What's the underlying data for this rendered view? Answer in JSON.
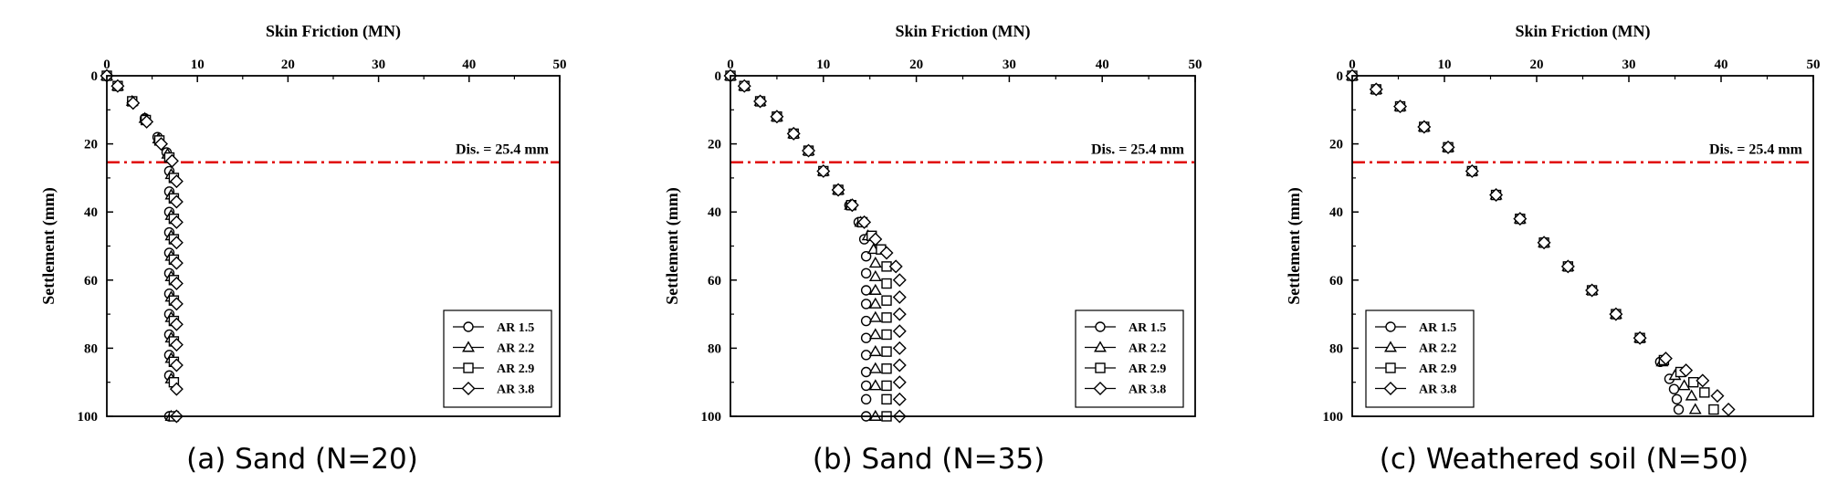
{
  "chart_data": [
    {
      "type": "scatter",
      "panel_label": "(a) Sand (N=20)",
      "title": "Skin Friction (MN)",
      "xlabel": "Skin Friction (MN)",
      "ylabel": "Settlement (mm)",
      "xlim": [
        0,
        50
      ],
      "ylim": [
        0,
        100
      ],
      "y_inverted": true,
      "xticks": [
        "0",
        "10",
        "20",
        "30",
        "40",
        "50"
      ],
      "yticks": [
        "0",
        "20",
        "40",
        "60",
        "80",
        "100"
      ],
      "reference_line": {
        "y": 25.4,
        "label": "Dis. = 25.4 mm",
        "color": "#e00000",
        "style": "dash-dot"
      },
      "legend": [
        "AR 1.5",
        "AR 2.2",
        "AR 2.9",
        "AR 3.8"
      ],
      "series": [
        {
          "name": "AR 1.5",
          "marker": "circle",
          "x": [
            0,
            1.2,
            2.8,
            4.2,
            5.6,
            6.6,
            6.9,
            6.9,
            6.9,
            6.9,
            6.9,
            6.9,
            6.9,
            6.9,
            6.9,
            6.9,
            6.9,
            6.9
          ],
          "y": [
            0,
            3,
            7.5,
            12.5,
            18,
            22.5,
            28,
            34,
            40,
            46,
            52,
            58,
            64,
            70,
            76,
            82,
            88,
            100
          ]
        },
        {
          "name": "AR 2.2",
          "marker": "triangle",
          "x": [
            0,
            1.2,
            2.8,
            4.2,
            5.7,
            6.7,
            7.1,
            7.1,
            7.1,
            7.1,
            7.1,
            7.1,
            7.1,
            7.1,
            7.1,
            7.1,
            7.1,
            7.1
          ],
          "y": [
            0,
            3,
            7.5,
            12.5,
            18.5,
            23,
            29,
            35,
            41,
            47,
            53,
            59,
            65,
            71,
            77,
            83,
            89,
            100
          ]
        },
        {
          "name": "AR 2.9",
          "marker": "square",
          "x": [
            0,
            1.2,
            2.8,
            4.3,
            5.8,
            6.9,
            7.4,
            7.4,
            7.4,
            7.4,
            7.4,
            7.4,
            7.4,
            7.4,
            7.4,
            7.4,
            7.4,
            7.4
          ],
          "y": [
            0,
            3,
            7.5,
            13,
            19,
            24,
            30,
            36,
            42,
            48,
            54,
            60,
            66,
            72,
            78,
            84,
            90,
            100
          ]
        },
        {
          "name": "AR 3.8",
          "marker": "diamond",
          "x": [
            0,
            1.2,
            2.9,
            4.4,
            6.0,
            7.2,
            7.7,
            7.7,
            7.7,
            7.7,
            7.7,
            7.7,
            7.7,
            7.7,
            7.7,
            7.7,
            7.7,
            7.7
          ],
          "y": [
            0,
            3,
            8,
            13.5,
            20,
            25,
            31,
            37,
            43,
            49,
            55,
            61,
            67,
            73,
            79,
            85,
            92,
            100
          ]
        }
      ]
    },
    {
      "type": "scatter",
      "panel_label": "(b) Sand (N=35)",
      "title": "Skin Friction (MN)",
      "xlabel": "Skin Friction (MN)",
      "ylabel": "Settlement (mm)",
      "xlim": [
        0,
        50
      ],
      "ylim": [
        0,
        100
      ],
      "y_inverted": true,
      "xticks": [
        "0",
        "10",
        "20",
        "30",
        "40",
        "50"
      ],
      "yticks": [
        "0",
        "20",
        "40",
        "60",
        "80",
        "100"
      ],
      "reference_line": {
        "y": 25.4,
        "label": "Dis. = 25.4 mm",
        "color": "#e00000",
        "style": "dash-dot"
      },
      "legend": [
        "AR 1.5",
        "AR 2.2",
        "AR 2.9",
        "AR 3.8"
      ],
      "series": [
        {
          "name": "AR 1.5",
          "marker": "circle",
          "x": [
            0,
            1.5,
            3.2,
            5.0,
            6.8,
            8.4,
            10.0,
            11.6,
            12.8,
            13.8,
            14.4,
            14.6,
            14.6,
            14.6,
            14.6,
            14.6,
            14.6,
            14.6,
            14.6,
            14.6,
            14.6,
            14.6
          ],
          "y": [
            0,
            3,
            7.5,
            12,
            17,
            22,
            28,
            33.5,
            38,
            43,
            48,
            53,
            58,
            63,
            67,
            72,
            77,
            82,
            87,
            91,
            95,
            100
          ]
        },
        {
          "name": "AR 2.2",
          "marker": "triangle",
          "x": [
            0,
            1.5,
            3.2,
            5.0,
            6.8,
            8.4,
            10.0,
            11.6,
            12.9,
            14.0,
            14.8,
            15.4,
            15.6,
            15.6,
            15.6,
            15.6,
            15.6,
            15.6,
            15.6,
            15.6,
            15.6,
            15.6
          ],
          "y": [
            0,
            3,
            7.5,
            12,
            17,
            22,
            28,
            33.5,
            38,
            43,
            47,
            51,
            55,
            59,
            63,
            67,
            71,
            76,
            81,
            86,
            91,
            100
          ]
        },
        {
          "name": "AR 2.9",
          "marker": "square",
          "x": [
            0,
            1.5,
            3.2,
            5.0,
            6.8,
            8.4,
            10.0,
            11.6,
            13.0,
            14.2,
            15.2,
            16.2,
            16.8,
            16.8,
            16.8,
            16.8,
            16.8,
            16.8,
            16.8,
            16.8,
            16.8,
            16.8
          ],
          "y": [
            0,
            3,
            7.5,
            12,
            17,
            22,
            28,
            33.5,
            38,
            43,
            47,
            51,
            56,
            61,
            66,
            71,
            76,
            81,
            86,
            91,
            95,
            100
          ]
        },
        {
          "name": "AR 3.8",
          "marker": "diamond",
          "x": [
            0,
            1.5,
            3.2,
            5.0,
            6.8,
            8.4,
            10.0,
            11.6,
            13.1,
            14.4,
            15.6,
            16.8,
            17.8,
            18.2,
            18.2,
            18.2,
            18.2,
            18.2,
            18.2,
            18.2,
            18.2,
            18.2
          ],
          "y": [
            0,
            3,
            7.5,
            12,
            17,
            22,
            28,
            33.5,
            38,
            43,
            48,
            52,
            56,
            60,
            65,
            70,
            75,
            80,
            85,
            90,
            95,
            100
          ]
        }
      ]
    },
    {
      "type": "scatter",
      "panel_label": "(c) Weathered soil (N=50)",
      "title": "Skin Friction (MN)",
      "xlabel": "Skin Friction (MN)",
      "ylabel": "Settlement (mm)",
      "xlim": [
        0,
        50
      ],
      "ylim": [
        0,
        100
      ],
      "y_inverted": true,
      "xticks": [
        "0",
        "10",
        "20",
        "30",
        "40",
        "50"
      ],
      "yticks": [
        "0",
        "20",
        "40",
        "60",
        "80",
        "100"
      ],
      "reference_line": {
        "y": 25.4,
        "label": "Dis. = 25.4 mm",
        "color": "#e00000",
        "style": "dash-dot"
      },
      "legend": [
        "AR 1.5",
        "AR 2.2",
        "AR 2.9",
        "AR 3.8"
      ],
      "series": [
        {
          "name": "AR 1.5",
          "marker": "circle",
          "x": [
            0,
            2.6,
            5.2,
            7.8,
            10.4,
            13.0,
            15.6,
            18.2,
            20.8,
            23.4,
            26.0,
            28.6,
            31.2,
            33.4,
            34.4,
            34.9,
            35.2,
            35.4
          ],
          "y": [
            0,
            4,
            9,
            15,
            21,
            28,
            35,
            42,
            49,
            56,
            63,
            70,
            77,
            84,
            89,
            92,
            95,
            98
          ]
        },
        {
          "name": "AR 2.2",
          "marker": "triangle",
          "x": [
            0,
            2.6,
            5.2,
            7.8,
            10.4,
            13.0,
            15.6,
            18.2,
            20.8,
            23.4,
            26.0,
            28.6,
            31.2,
            33.6,
            35.0,
            36.0,
            36.8,
            37.2
          ],
          "y": [
            0,
            4,
            9,
            15,
            21,
            28,
            35,
            42,
            49,
            56,
            63,
            70,
            77,
            84,
            88,
            91,
            94,
            98
          ]
        },
        {
          "name": "AR 2.9",
          "marker": "square",
          "x": [
            0,
            2.6,
            5.2,
            7.8,
            10.4,
            13.0,
            15.6,
            18.2,
            20.8,
            23.4,
            26.0,
            28.6,
            31.2,
            33.8,
            35.6,
            37.0,
            38.2,
            39.2
          ],
          "y": [
            0,
            4,
            9,
            15,
            21,
            28,
            35,
            42,
            49,
            56,
            63,
            70,
            77,
            83.5,
            87,
            90,
            93,
            98
          ]
        },
        {
          "name": "AR 3.8",
          "marker": "diamond",
          "x": [
            0,
            2.6,
            5.2,
            7.8,
            10.4,
            13.0,
            15.6,
            18.2,
            20.8,
            23.4,
            26.0,
            28.6,
            31.2,
            34.0,
            36.2,
            38.0,
            39.6,
            40.8
          ],
          "y": [
            0,
            4,
            9,
            15,
            21,
            28,
            35,
            42,
            49,
            56,
            63,
            70,
            77,
            83,
            86.5,
            89.5,
            94,
            98
          ]
        }
      ]
    }
  ]
}
